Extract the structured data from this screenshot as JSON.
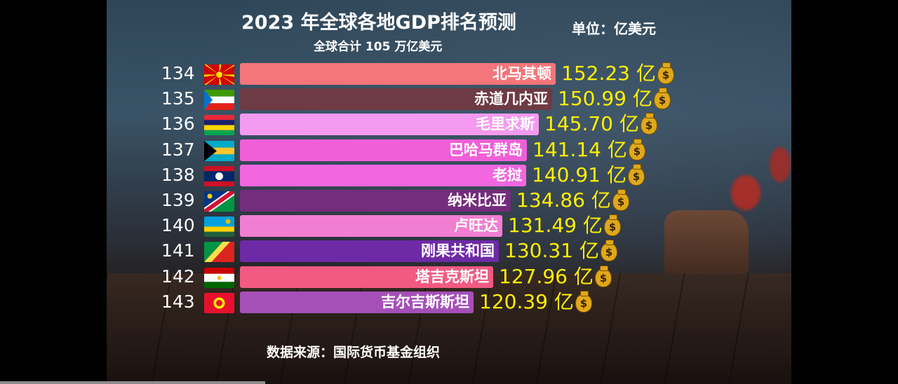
{
  "header": {
    "title": "2023 年全球各地GDP排名预测",
    "unit": "单位：亿美元",
    "subtitle": "全球合计 105 万亿美元"
  },
  "footer": {
    "source": "数据来源：国际货币基金组织"
  },
  "value_suffix": "亿",
  "icons": {
    "money_bag": "money-bag-icon",
    "money_symbol": "$"
  },
  "colors": {
    "value_text": "#ffef00"
  },
  "chart_data": {
    "type": "bar",
    "orientation": "horizontal",
    "unit": "亿美元",
    "categories": [
      "北马其顿",
      "赤道几内亚",
      "毛里求斯",
      "巴哈马群岛",
      "老挝",
      "纳米比亚",
      "卢旺达",
      "刚果共和国",
      "塔吉克斯坦",
      "吉尔吉斯斯坦"
    ],
    "values": [
      152.23,
      150.99,
      145.7,
      141.14,
      140.91,
      134.86,
      131.49,
      130.31,
      127.96,
      120.39
    ],
    "value_labels": [
      "152.23",
      "150.99",
      "145.70",
      "141.14",
      "140.91",
      "134.86",
      "131.49",
      "130.31",
      "127.96",
      "120.39"
    ],
    "ranks": [
      "134",
      "135",
      "136",
      "137",
      "138",
      "139",
      "140",
      "141",
      "142",
      "143"
    ],
    "bar_colors": [
      "#f4757a",
      "#6e3a44",
      "#f49af0",
      "#f05fd8",
      "#f266e0",
      "#742c7c",
      "#f27ed2",
      "#6e2aa6",
      "#f25a82",
      "#a450b8"
    ],
    "flags": [
      "north-macedonia-flag",
      "equatorial-guinea-flag",
      "mauritius-flag",
      "bahamas-flag",
      "laos-flag",
      "namibia-flag",
      "rwanda-flag",
      "republic-of-the-congo-flag",
      "tajikistan-flag",
      "kyrgyzstan-flag"
    ]
  }
}
